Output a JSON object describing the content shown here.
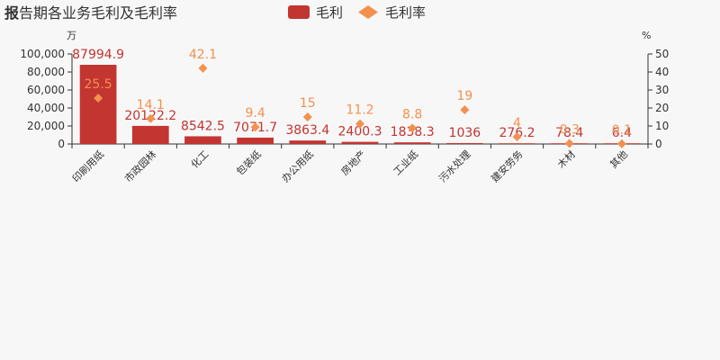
{
  "title": {
    "strong": "报",
    "text": "告期各业务毛利及毛利率"
  },
  "legend": {
    "bar_label": "毛利",
    "line_label": "毛利率",
    "placement": "top-center"
  },
  "colors": {
    "bar": "#c23531",
    "marker": "#f4904e",
    "background": "#f7f7f7",
    "axis": "#333333"
  },
  "chart_data": {
    "type": "bar",
    "categories": [
      "印刷用纸",
      "市政园林",
      "化工",
      "包装纸",
      "办公用纸",
      "房地产",
      "工业纸",
      "污水处理",
      "建安劳务",
      "木材",
      "其他"
    ],
    "series": [
      {
        "name": "毛利",
        "type": "bar",
        "axis": "left",
        "values": [
          87994.9,
          20122.2,
          8542.5,
          7071.7,
          3863.4,
          2400.3,
          1838.3,
          1036,
          276.2,
          78.4,
          6.4
        ],
        "labels": [
          "87994.9",
          "20122.2",
          "8542.5",
          "7071.7",
          "3863.4",
          "2400.3",
          "1838.3",
          "1036",
          "276.2",
          "78.4",
          "6.4"
        ]
      },
      {
        "name": "毛利率",
        "type": "scatter",
        "axis": "right",
        "values": [
          25.5,
          14.1,
          42.1,
          9.4,
          15,
          11.2,
          8.8,
          19,
          4,
          0.3,
          0.1
        ],
        "labels": [
          "25.5",
          "14.1",
          "42.1",
          "9.4",
          "15",
          "11.2",
          "8.8",
          "19",
          "4",
          "0.3",
          "0.1"
        ]
      }
    ],
    "y_left": {
      "unit": "万",
      "min": 0,
      "max": 100000,
      "ticks": [
        "0",
        "20,000",
        "40,000",
        "60,000",
        "80,000",
        "100,000"
      ]
    },
    "y_right": {
      "unit": "%",
      "min": 0,
      "max": 50,
      "ticks": [
        "0",
        "10",
        "20",
        "30",
        "40",
        "50"
      ]
    },
    "grid": false
  }
}
